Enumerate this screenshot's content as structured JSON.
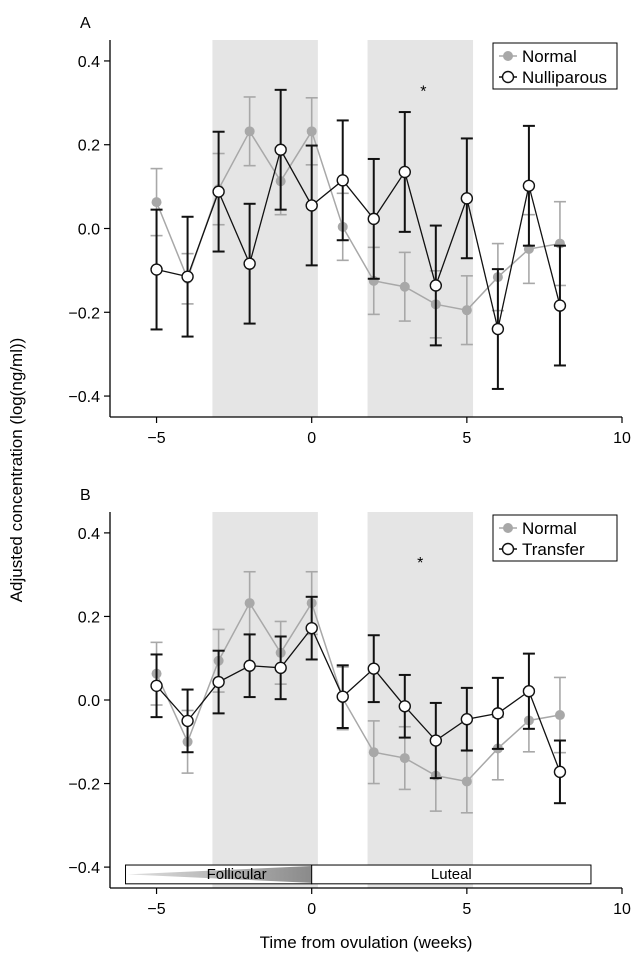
{
  "figure": {
    "ylabel": "Adjusted concentration (log(ng/ml))",
    "xlabel": "Time from ovulation (weeks)"
  },
  "colors": {
    "normal": "#a8a8a8",
    "comparison": "#111111",
    "shade": "#e5e5e5",
    "phase_dark": "#8a8a8a",
    "phase_light": "#e0e0e0"
  },
  "chart_data": [
    {
      "type": "line",
      "panel_label": "A",
      "xlim": [
        -6.5,
        10
      ],
      "ylim": [
        -0.45,
        0.45
      ],
      "xticks": [
        -5,
        0,
        5,
        10
      ],
      "yticks": [
        -0.4,
        -0.2,
        0.0,
        0.2,
        0.4
      ],
      "xtick_labels": [
        "−5",
        "0",
        "5",
        "10"
      ],
      "ytick_labels": [
        "−0.4",
        "−0.2",
        "0.0",
        "0.2",
        "0.4"
      ],
      "shaded_regions": [
        [
          -3.2,
          0.2
        ],
        [
          1.8,
          5.2
        ]
      ],
      "annotation": {
        "text": "*",
        "x": 3.6,
        "y": 0.33
      },
      "legend_position": "top-right",
      "series": [
        {
          "name": "Normal",
          "style": "filled",
          "x": [
            -5,
            -4,
            -3,
            -2,
            -1,
            0,
            1,
            2,
            3,
            4,
            5,
            6,
            7,
            8
          ],
          "y": [
            0.063,
            -0.12,
            0.094,
            0.232,
            0.113,
            0.232,
            0.004,
            -0.125,
            -0.139,
            -0.181,
            -0.195,
            -0.116,
            -0.049,
            -0.036
          ],
          "err": [
            0.08,
            0.06,
            0.085,
            0.082,
            0.08,
            0.08,
            0.08,
            0.08,
            0.082,
            0.08,
            0.082,
            0.08,
            0.082,
            0.1
          ]
        },
        {
          "name": "Nulliparous",
          "style": "open",
          "x": [
            -5,
            -4,
            -3,
            -2,
            -1,
            0,
            1,
            2,
            3,
            4,
            5,
            6,
            7,
            8
          ],
          "y": [
            -0.098,
            -0.115,
            0.088,
            -0.084,
            0.188,
            0.055,
            0.115,
            0.023,
            0.135,
            -0.136,
            0.072,
            -0.24,
            0.102,
            -0.184
          ],
          "err": [
            0.143,
            0.143,
            0.143,
            0.143,
            0.143,
            0.143,
            0.143,
            0.143,
            0.143,
            0.143,
            0.143,
            0.143,
            0.143,
            0.143
          ]
        }
      ]
    },
    {
      "type": "line",
      "panel_label": "B",
      "xlim": [
        -6.5,
        10
      ],
      "ylim": [
        -0.45,
        0.45
      ],
      "xticks": [
        -5,
        0,
        5,
        10
      ],
      "yticks": [
        -0.4,
        -0.2,
        0.0,
        0.2,
        0.4
      ],
      "xtick_labels": [
        "−5",
        "0",
        "5",
        "10"
      ],
      "ytick_labels": [
        "−0.4",
        "−0.2",
        "0.0",
        "0.2",
        "0.4"
      ],
      "shaded_regions": [
        [
          -3.2,
          0.2
        ],
        [
          1.8,
          5.2
        ]
      ],
      "annotation": {
        "text": "*",
        "x": 3.5,
        "y": 0.33
      },
      "legend_position": "top-right",
      "phase_bar": {
        "y_top": -0.395,
        "y_bottom": -0.44,
        "follicular": {
          "label": "Follicular",
          "x_start": -6.0,
          "x_end": 0.0
        },
        "luteal": {
          "label": "Luteal",
          "x_start": 0.0,
          "x_end": 9.0
        }
      },
      "series": [
        {
          "name": "Normal",
          "style": "filled",
          "x": [
            -5,
            -4,
            -3,
            -2,
            -1,
            0,
            1,
            2,
            3,
            4,
            5,
            6,
            7,
            8
          ],
          "y": [
            0.063,
            -0.1,
            0.094,
            0.232,
            0.113,
            0.232,
            0.004,
            -0.125,
            -0.139,
            -0.181,
            -0.195,
            -0.116,
            -0.049,
            -0.036
          ],
          "err": [
            0.075,
            0.075,
            0.075,
            0.075,
            0.075,
            0.075,
            0.075,
            0.075,
            0.075,
            0.085,
            0.075,
            0.075,
            0.075,
            0.09
          ]
        },
        {
          "name": "Transfer",
          "style": "open",
          "x": [
            -5,
            -4,
            -3,
            -2,
            -1,
            0,
            1,
            2,
            3,
            4,
            5,
            6,
            7,
            8
          ],
          "y": [
            0.034,
            -0.05,
            0.043,
            0.082,
            0.077,
            0.172,
            0.008,
            0.075,
            -0.015,
            -0.097,
            -0.046,
            -0.032,
            0.021,
            -0.172
          ],
          "err": [
            0.075,
            0.075,
            0.075,
            0.075,
            0.075,
            0.075,
            0.075,
            0.08,
            0.075,
            0.09,
            0.075,
            0.085,
            0.09,
            0.075
          ]
        }
      ]
    }
  ]
}
